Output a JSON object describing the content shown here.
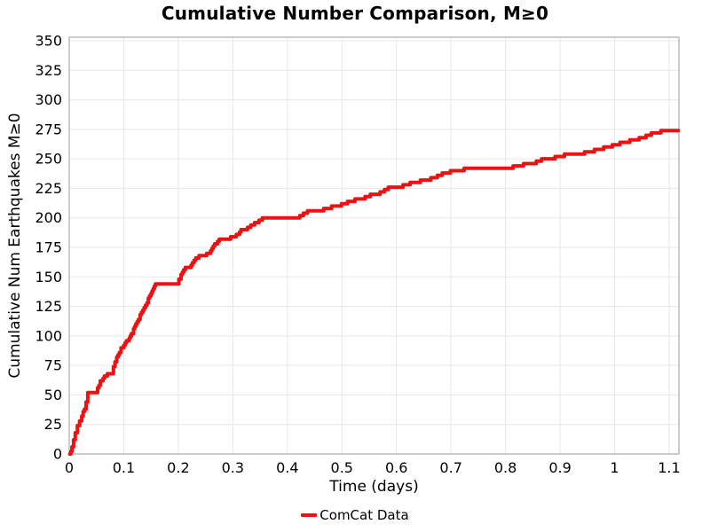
{
  "chart_data": {
    "type": "line",
    "title": "Cumulative Number Comparison, M≥0",
    "xlabel": "Time (days)",
    "ylabel": "Cumulative Num Earthquakes M≥0",
    "xlim": [
      0,
      1.118
    ],
    "ylim": [
      0,
      350
    ],
    "grid": true,
    "legend_position": "bottom-center",
    "xticks": [
      0,
      0.1,
      0.2,
      0.3,
      0.4,
      0.5,
      0.6,
      0.7,
      0.8,
      0.9,
      1,
      1.1
    ],
    "xtick_labels": [
      "0",
      "0.1",
      "0.2",
      "0.3",
      "0.4",
      "0.5",
      "0.6",
      "0.7",
      "0.8",
      "0.9",
      "1",
      "1.1"
    ],
    "yticks": [
      0,
      25,
      50,
      75,
      100,
      125,
      150,
      175,
      200,
      225,
      250,
      275,
      300,
      325,
      350
    ],
    "ytick_labels": [
      "0",
      "25",
      "50",
      "75",
      "100",
      "125",
      "150",
      "175",
      "200",
      "225",
      "250",
      "275",
      "300",
      "325",
      "350"
    ],
    "legend": [
      {
        "label": "ComCat Data",
        "color": "#ee1111"
      }
    ],
    "series": [
      {
        "name": "ComCat Data",
        "color": "#ee1111",
        "step": true,
        "points": [
          [
            0.001,
            0
          ],
          [
            0.003,
            2
          ],
          [
            0.005,
            5
          ],
          [
            0.008,
            11
          ],
          [
            0.011,
            17
          ],
          [
            0.015,
            23
          ],
          [
            0.019,
            27
          ],
          [
            0.023,
            32
          ],
          [
            0.028,
            38
          ],
          [
            0.031,
            44
          ],
          [
            0.034,
            51
          ],
          [
            0.048,
            52
          ],
          [
            0.052,
            56
          ],
          [
            0.057,
            61
          ],
          [
            0.062,
            64
          ],
          [
            0.067,
            66
          ],
          [
            0.07,
            67
          ],
          [
            0.078,
            68
          ],
          [
            0.081,
            73
          ],
          [
            0.084,
            78
          ],
          [
            0.087,
            82
          ],
          [
            0.092,
            86
          ],
          [
            0.095,
            89
          ],
          [
            0.1,
            91
          ],
          [
            0.105,
            95
          ],
          [
            0.11,
            98
          ],
          [
            0.114,
            102
          ],
          [
            0.118,
            105
          ],
          [
            0.122,
            109
          ],
          [
            0.127,
            113
          ],
          [
            0.13,
            117
          ],
          [
            0.135,
            121
          ],
          [
            0.14,
            126
          ],
          [
            0.145,
            131
          ],
          [
            0.15,
            136
          ],
          [
            0.154,
            140
          ],
          [
            0.158,
            143
          ],
          [
            0.165,
            144
          ],
          [
            0.198,
            144
          ],
          [
            0.201,
            148
          ],
          [
            0.205,
            152
          ],
          [
            0.21,
            156
          ],
          [
            0.213,
            157
          ],
          [
            0.221,
            158
          ],
          [
            0.226,
            161
          ],
          [
            0.232,
            165
          ],
          [
            0.238,
            168
          ],
          [
            0.252,
            169
          ],
          [
            0.259,
            172
          ],
          [
            0.264,
            176
          ],
          [
            0.272,
            180
          ],
          [
            0.278,
            182
          ],
          [
            0.296,
            183
          ],
          [
            0.303,
            184
          ],
          [
            0.31,
            186
          ],
          [
            0.315,
            189
          ],
          [
            0.318,
            190
          ],
          [
            0.327,
            191
          ],
          [
            0.333,
            193
          ],
          [
            0.34,
            195
          ],
          [
            0.348,
            197
          ],
          [
            0.354,
            199
          ],
          [
            0.366,
            200
          ],
          [
            0.42,
            200
          ],
          [
            0.426,
            202
          ],
          [
            0.433,
            204
          ],
          [
            0.437,
            205
          ],
          [
            0.452,
            205
          ],
          [
            0.46,
            206
          ],
          [
            0.47,
            208
          ],
          [
            0.481,
            209
          ],
          [
            0.492,
            210
          ],
          [
            0.503,
            212
          ],
          [
            0.514,
            214
          ],
          [
            0.524,
            215
          ],
          [
            0.535,
            216
          ],
          [
            0.546,
            218
          ],
          [
            0.558,
            220
          ],
          [
            0.57,
            221
          ],
          [
            0.578,
            223
          ],
          [
            0.585,
            225
          ],
          [
            0.601,
            225
          ],
          [
            0.612,
            227
          ],
          [
            0.625,
            229
          ],
          [
            0.638,
            230
          ],
          [
            0.65,
            232
          ],
          [
            0.663,
            233
          ],
          [
            0.675,
            235
          ],
          [
            0.687,
            238
          ],
          [
            0.699,
            239
          ],
          [
            0.711,
            240
          ],
          [
            0.724,
            241
          ],
          [
            0.745,
            242
          ],
          [
            0.806,
            242
          ],
          [
            0.822,
            244
          ],
          [
            0.833,
            245
          ],
          [
            0.85,
            246
          ],
          [
            0.866,
            249
          ],
          [
            0.88,
            250
          ],
          [
            0.898,
            252
          ],
          [
            0.908,
            253
          ],
          [
            0.931,
            254
          ],
          [
            0.945,
            255
          ],
          [
            0.963,
            257
          ],
          [
            0.98,
            259
          ],
          [
            0.996,
            261
          ],
          [
            1.01,
            263
          ],
          [
            1.028,
            265
          ],
          [
            1.045,
            267
          ],
          [
            1.061,
            270
          ],
          [
            1.074,
            272
          ],
          [
            1.085,
            273
          ],
          [
            1.1,
            274
          ],
          [
            1.117,
            274
          ]
        ]
      }
    ]
  },
  "colors": {
    "line": "#ee1111",
    "grid": "#e7e7e7",
    "border": "#ababab",
    "text": "#000000",
    "background": "#ffffff"
  }
}
